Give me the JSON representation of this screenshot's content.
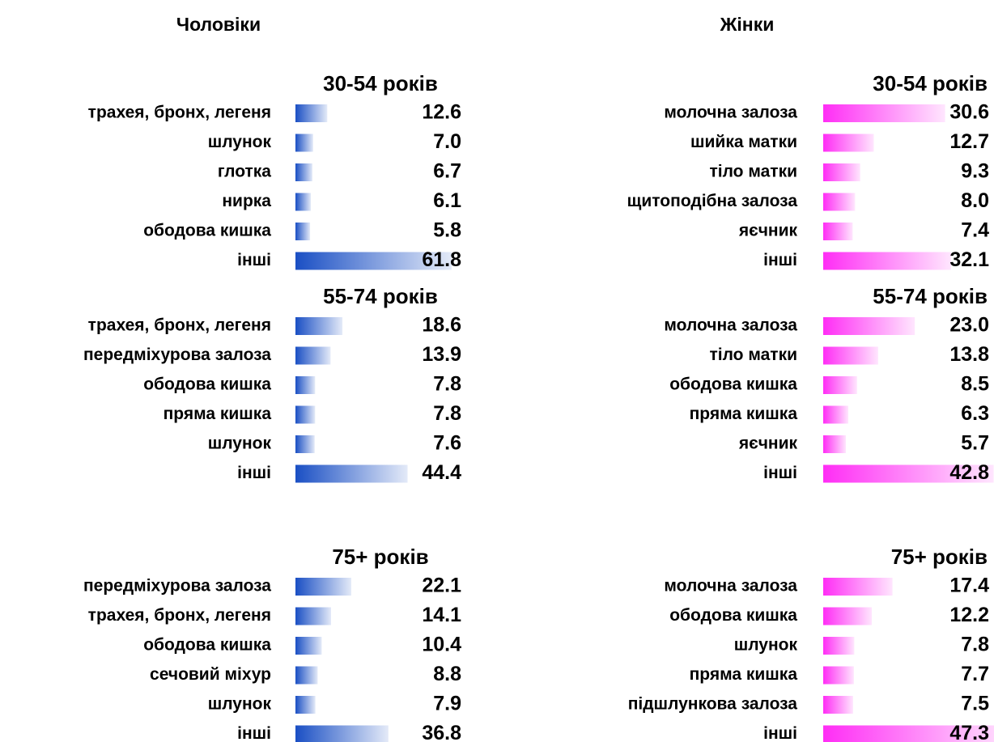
{
  "headings": [
    "Чоловіки",
    "Жінки"
  ],
  "chart_data": [
    {
      "type": "bar",
      "title": "30-54 років",
      "color": "#1a4fc4",
      "categories": [
        "трахея, бронх, легеня",
        "шлунок",
        "глотка",
        "нирка",
        "ободова кишка",
        "інші"
      ],
      "values": [
        12.6,
        7.0,
        6.7,
        6.1,
        5.8,
        61.8
      ],
      "value_labels": [
        "12.6",
        "7.0",
        "6.7",
        "6.1",
        "5.8",
        "61.8"
      ]
    },
    {
      "type": "bar",
      "title": "55-74 років",
      "color": "#1a4fc4",
      "categories": [
        "трахея, бронх, легеня",
        "передміхурова залоза",
        "ободова кишка",
        "пряма кишка",
        "шлунок",
        "інші"
      ],
      "values": [
        18.6,
        13.9,
        7.8,
        7.8,
        7.6,
        44.4
      ],
      "value_labels": [
        "18.6",
        "13.9",
        "7.8",
        "7.8",
        "7.6",
        "44.4"
      ]
    },
    {
      "type": "bar",
      "title": "75+ років",
      "color": "#1a4fc4",
      "categories": [
        "передміхурова залоза",
        "трахея, бронх, легеня",
        "ободова кишка",
        "сечовий міхур",
        "шлунок",
        "інші"
      ],
      "values": [
        22.1,
        14.1,
        10.4,
        8.8,
        7.9,
        36.8
      ],
      "value_labels": [
        "22.1",
        "14.1",
        "10.4",
        "8.8",
        "7.9",
        "36.8"
      ]
    },
    {
      "type": "bar",
      "title": "30-54 років",
      "color": "#ff2df5",
      "categories": [
        "молочна залоза",
        "шийка матки",
        "тіло матки",
        "щитоподібна залоза",
        "яєчник",
        "інші"
      ],
      "values": [
        30.6,
        12.7,
        9.3,
        8.0,
        7.4,
        32.1
      ],
      "value_labels": [
        "30.6",
        "12.7",
        "9.3",
        "8.0",
        "7.4",
        "32.1"
      ]
    },
    {
      "type": "bar",
      "title": "55-74 років",
      "color": "#ff2df5",
      "categories": [
        "молочна залоза",
        "тіло матки",
        "ободова кишка",
        "пряма кишка",
        "яєчник",
        "інші"
      ],
      "values": [
        23.0,
        13.8,
        8.5,
        6.3,
        5.7,
        42.8
      ],
      "value_labels": [
        "23.0",
        "13.8",
        "8.5",
        "6.3",
        "5.7",
        "42.8"
      ]
    },
    {
      "type": "bar",
      "title": "75+ років",
      "color": "#ff2df5",
      "categories": [
        "молочна залоза",
        "ободова кишка",
        "шлунок",
        "пряма кишка",
        "підшлункова залоза",
        "інші"
      ],
      "values": [
        17.4,
        12.2,
        7.8,
        7.7,
        7.5,
        47.3
      ],
      "value_labels": [
        "17.4",
        "12.2",
        "7.8",
        "7.7",
        "7.5",
        "47.3"
      ]
    }
  ]
}
